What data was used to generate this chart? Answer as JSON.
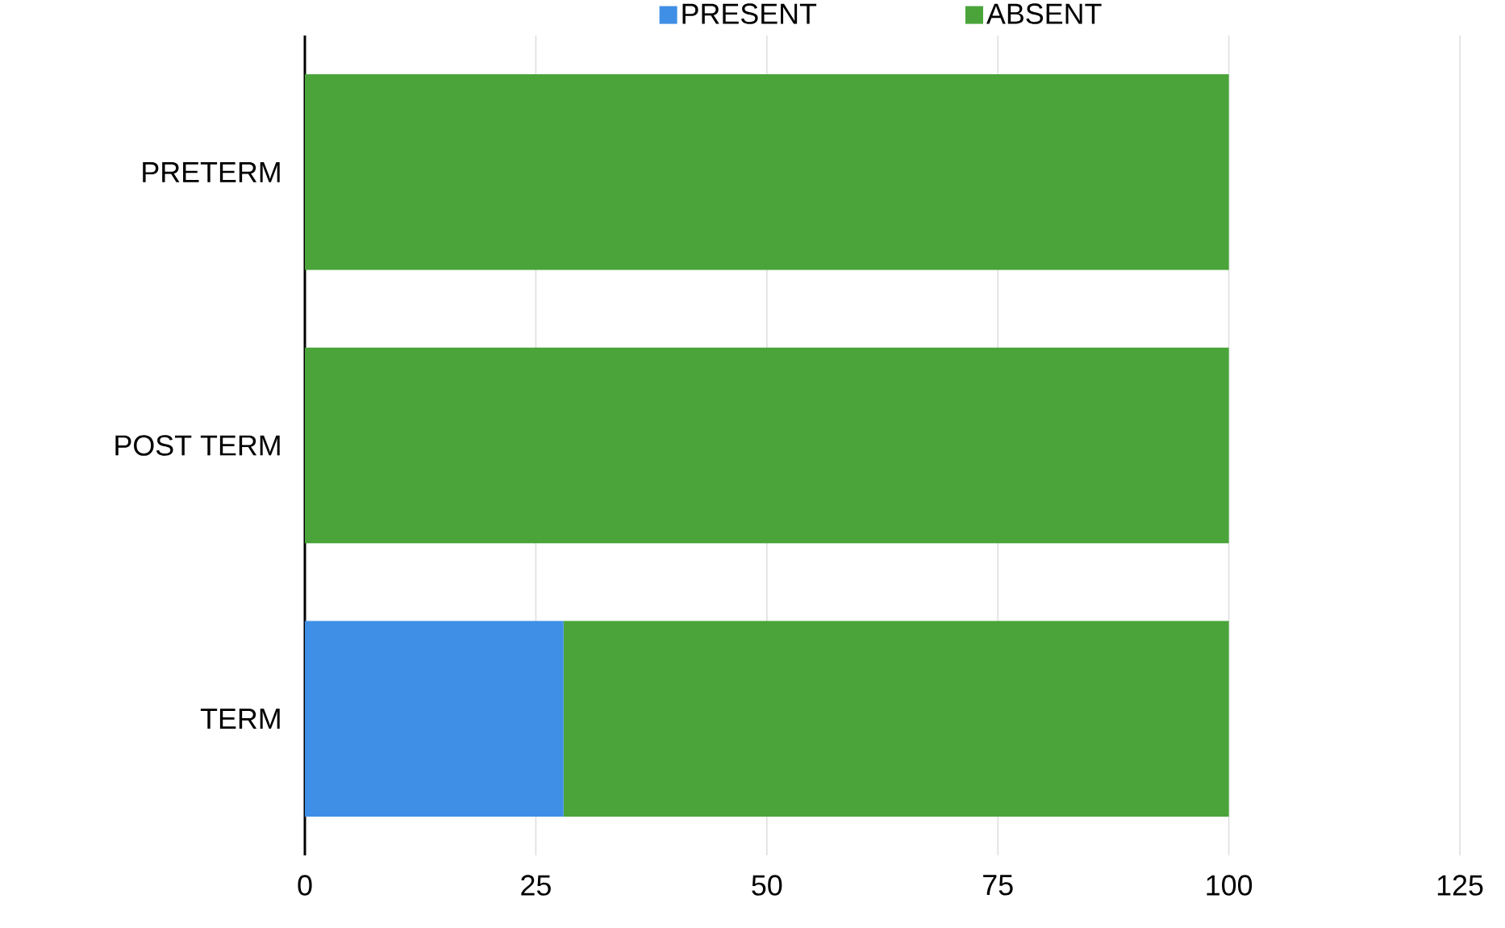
{
  "chart_data": {
    "type": "bar",
    "orientation": "horizontal",
    "stacked": true,
    "categories": [
      "PRETERM",
      "POST TERM",
      "TERM"
    ],
    "series": [
      {
        "name": "PRESENT",
        "color": "#3f8fe6",
        "values": [
          0,
          0,
          28
        ]
      },
      {
        "name": "ABSENT",
        "color": "#4aa43a",
        "values": [
          100,
          100,
          72
        ]
      }
    ],
    "xlim": [
      0,
      125
    ],
    "xticks": [
      0,
      25,
      50,
      75,
      100,
      125
    ],
    "grid": "x",
    "legend": "top"
  }
}
